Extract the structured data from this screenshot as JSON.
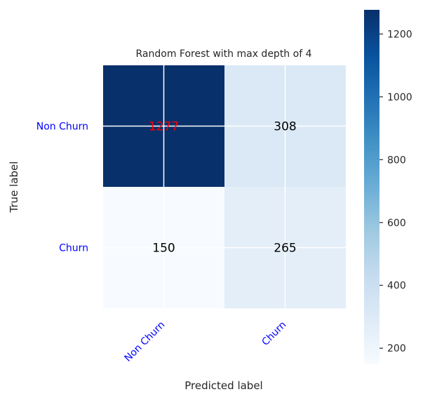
{
  "chart_data": {
    "type": "heatmap",
    "title": "Random Forest with max depth of 4",
    "xlabel": "Predicted label",
    "ylabel": "True label",
    "rows": [
      "Non Churn",
      "Churn"
    ],
    "columns": [
      "Non Churn",
      "Churn"
    ],
    "values": [
      [
        1277,
        308
      ],
      [
        150,
        265
      ]
    ],
    "colormap": "Blues",
    "value_range": [
      150,
      1277
    ],
    "colorbar_ticks": [
      200,
      400,
      600,
      800,
      1000,
      1200
    ],
    "grid": true,
    "legend": "colorbar-right"
  },
  "colors": {
    "tick_label_color": "#0000ff",
    "highlight_value_color": "#ff0000",
    "default_value_color": "#000000",
    "colormap_low": "#f7fbff",
    "colormap_high": "#08306b"
  }
}
